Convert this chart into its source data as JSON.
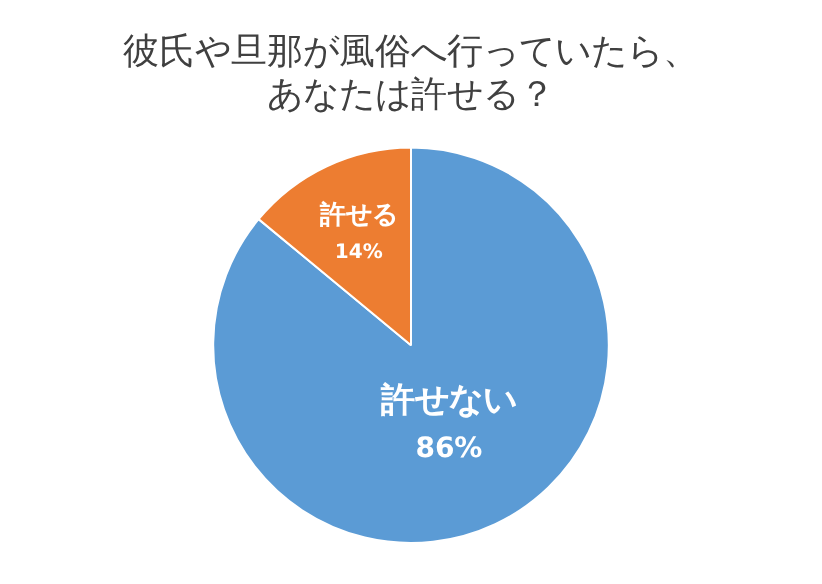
{
  "chart_data": {
    "type": "pie",
    "title": "彼氏や旦那が風俗へ行っていたら、あなたは許せる？",
    "categories": [
      "許せない",
      "許せる"
    ],
    "values": [
      86,
      14
    ],
    "colors": [
      "#5b9bd5",
      "#ed7d31"
    ],
    "value_labels": [
      "86%",
      "14%"
    ],
    "legend": false
  }
}
